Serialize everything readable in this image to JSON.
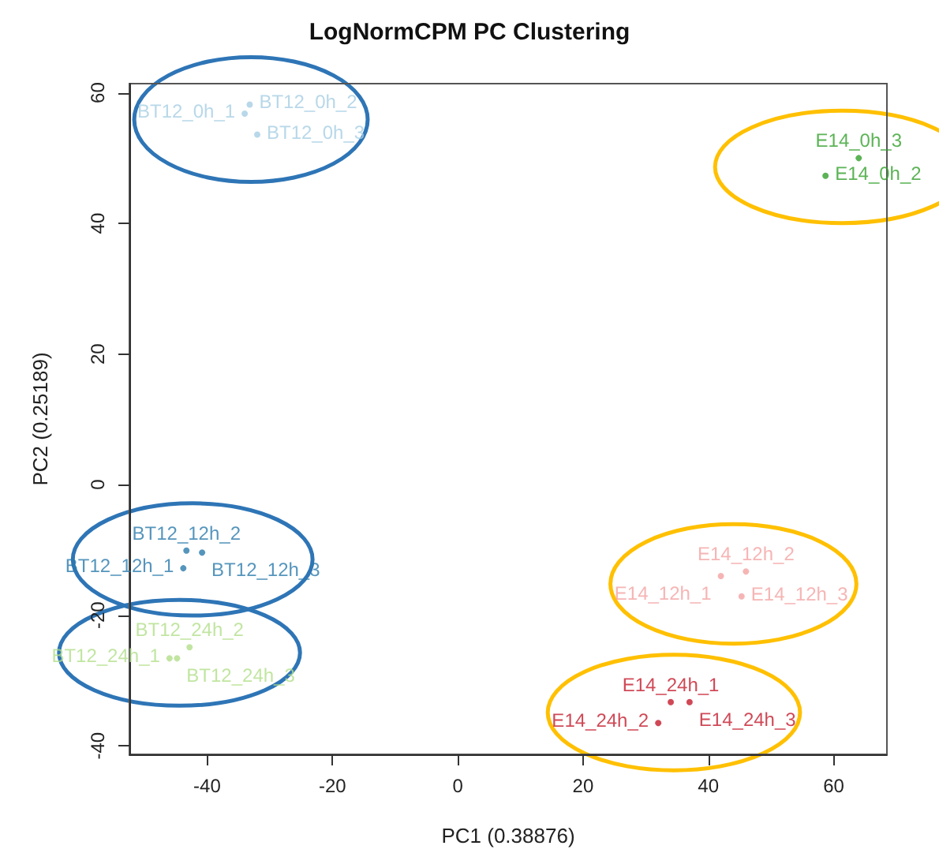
{
  "chart_data": {
    "type": "scatter",
    "title": "LogNormCPM PC Clustering",
    "xlabel": "PC1 (0.38876)",
    "ylabel": "PC2 (0.25189)",
    "xlim": [
      -52.4,
      68.5
    ],
    "ylim": [
      -41.3,
      61.4
    ],
    "xticks": [
      -40,
      -20,
      0,
      20,
      40,
      60
    ],
    "yticks": [
      -40,
      -20,
      0,
      20,
      40,
      60
    ],
    "marker": "circle",
    "grid": false,
    "series": [
      {
        "color": "#a6cee3",
        "x": [
          -34,
          -33.2,
          -32
        ],
        "values": [
          56.8,
          58.2,
          53.6
        ],
        "value_labels": [
          "BT12_0h_1",
          "BT12_0h_2",
          "BT12_0h_3"
        ]
      },
      {
        "color": "#2b7bab",
        "x": [
          -43.8,
          -43.3,
          -40.8
        ],
        "values": [
          -12.8,
          -10.1,
          -10.4
        ],
        "value_labels": [
          "BT12_12h_1",
          "BT12_12h_2",
          "BT12_12h_3"
        ]
      },
      {
        "color": "#b2df8a",
        "x": [
          -46,
          -42.8,
          -44.8
        ],
        "values": [
          -26.6,
          -24.9,
          -26.6
        ],
        "value_labels": [
          "BT12_24h_1",
          "BT12_24h_2",
          "BT12_24h_3"
        ]
      },
      {
        "color": "#33a02c",
        "x": [
          58.7,
          64
        ],
        "values": [
          47.3,
          50
        ],
        "value_labels": [
          "E14_0h_2",
          "E14_0h_3"
        ]
      },
      {
        "color": "#f4a3a3",
        "x": [
          42,
          46,
          45.3
        ],
        "values": [
          -14,
          -13.3,
          -17.1
        ],
        "value_labels": [
          "E14_12h_1",
          "E14_12h_2",
          "E14_12h_3"
        ]
      },
      {
        "color": "#c41a2c",
        "x": [
          34,
          32,
          37
        ],
        "values": [
          -33.3,
          -36.5,
          -33.3
        ],
        "value_labels": [
          "E14_24h_1",
          "E14_24h_2",
          "E14_24h_3"
        ]
      }
    ]
  }
}
